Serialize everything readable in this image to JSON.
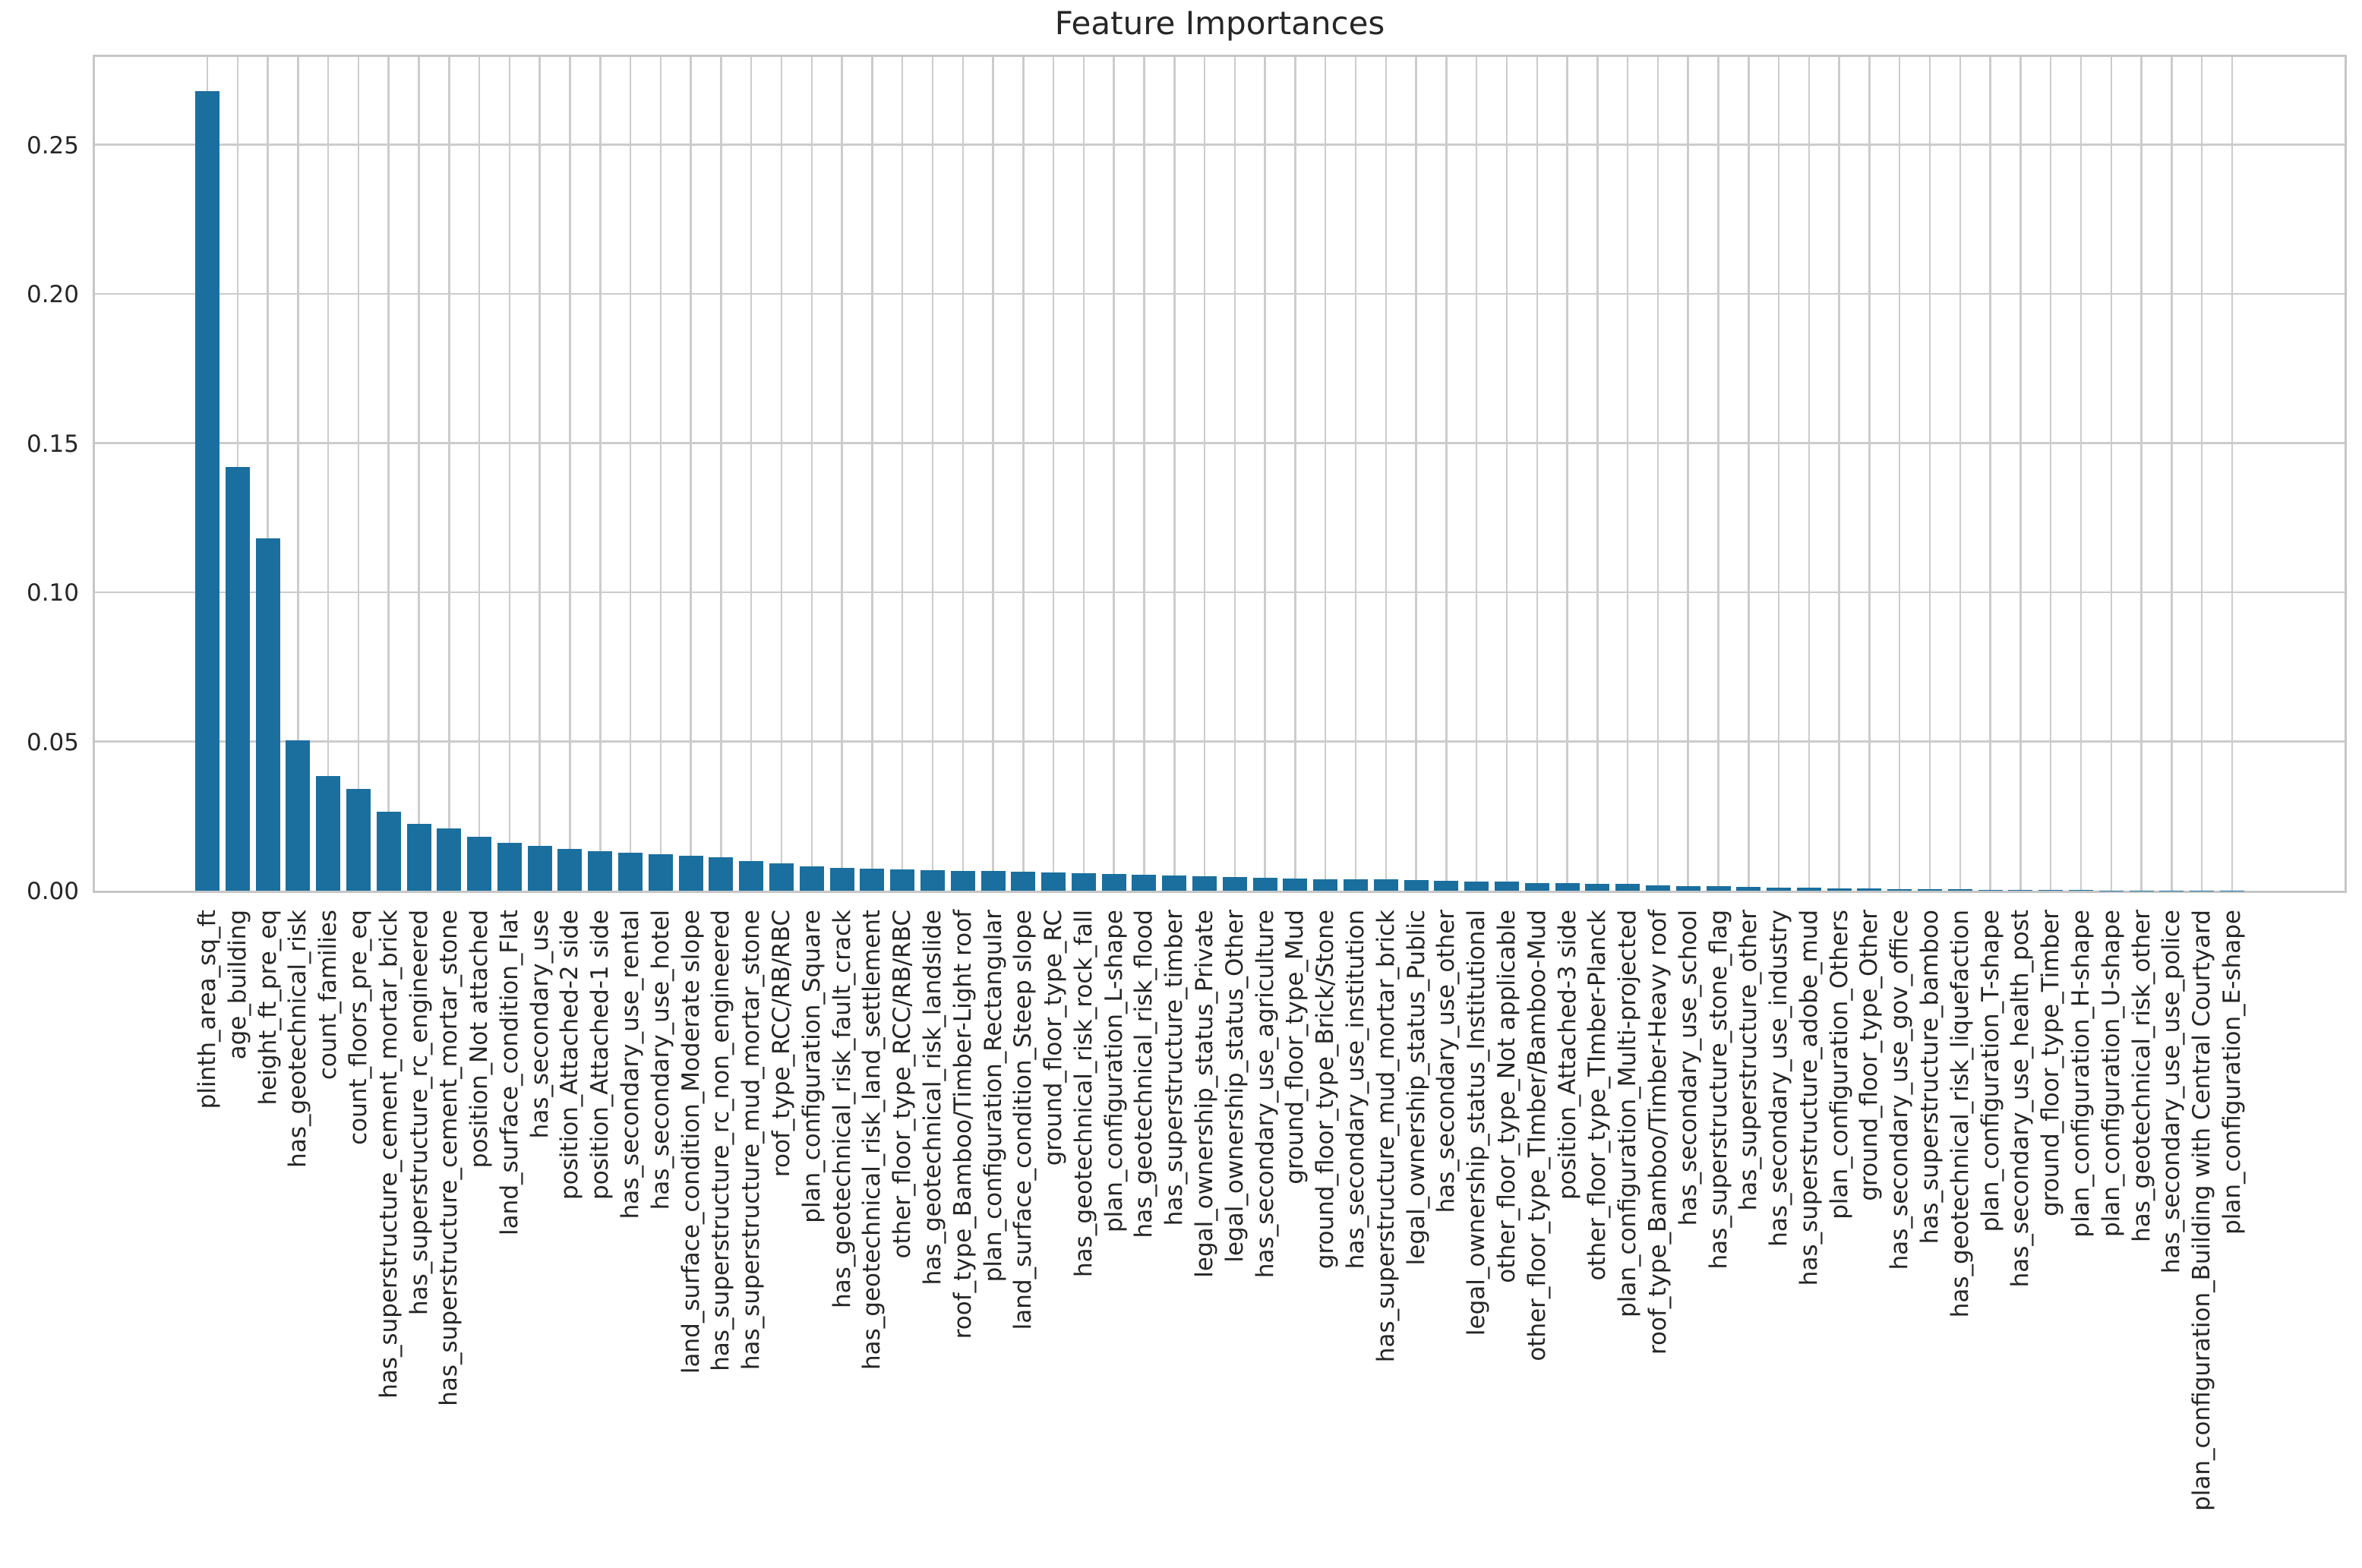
{
  "title": "Feature Importances",
  "colors": {
    "bar": "#1A6F9E",
    "gridline": "#CCCCCC",
    "frame": "#C6C6C6",
    "text": "#262626",
    "background": "#FFFFFF"
  },
  "y_axis": {
    "tick_labels": [
      "0.00",
      "0.05",
      "0.10",
      "0.15",
      "0.20",
      "0.25"
    ],
    "tick_values": [
      0.0,
      0.05,
      0.1,
      0.15,
      0.2,
      0.25
    ]
  },
  "chart_data": {
    "type": "bar",
    "title": "Feature Importances",
    "xlabel": "",
    "ylabel": "",
    "ylim": [
      0,
      0.281
    ],
    "grid": true,
    "legend": false,
    "bar_color": "#1A6F9E",
    "categories": [
      "plinth_area_sq_ft",
      "age_building",
      "height_ft_pre_eq",
      "has_geotechnical_risk",
      "count_families",
      "count_floors_pre_eq",
      "has_superstructure_cement_mortar_brick",
      "has_superstructure_rc_engineered",
      "has_superstructure_cement_mortar_stone",
      "position_Not attached",
      "land_surface_condition_Flat",
      "has_secondary_use",
      "position_Attached-2 side",
      "position_Attached-1 side",
      "has_secondary_use_rental",
      "has_secondary_use_hotel",
      "land_surface_condition_Moderate slope",
      "has_superstructure_rc_non_engineered",
      "has_superstructure_mud_mortar_stone",
      "roof_type_RCC/RB/RBC",
      "plan_configuration_Square",
      "has_geotechnical_risk_fault_crack",
      "has_geotechnical_risk_land_settlement",
      "other_floor_type_RCC/RB/RBC",
      "has_geotechnical_risk_landslide",
      "roof_type_Bamboo/Timber-Light roof",
      "plan_configuration_Rectangular",
      "land_surface_condition_Steep slope",
      "ground_floor_type_RC",
      "has_geotechnical_risk_rock_fall",
      "plan_configuration_L-shape",
      "has_geotechnical_risk_flood",
      "has_superstructure_timber",
      "legal_ownership_status_Private",
      "legal_ownership_status_Other",
      "has_secondary_use_agriculture",
      "ground_floor_type_Mud",
      "ground_floor_type_Brick/Stone",
      "has_secondary_use_institution",
      "has_superstructure_mud_mortar_brick",
      "legal_ownership_status_Public",
      "has_secondary_use_other",
      "legal_ownership_status_Institutional",
      "other_floor_type_Not applicable",
      "other_floor_type_TImber/Bamboo-Mud",
      "position_Attached-3 side",
      "other_floor_type_TImber-Planck",
      "plan_configuration_Multi-projected",
      "roof_type_Bamboo/Timber-Heavy roof",
      "has_secondary_use_school",
      "has_superstructure_stone_flag",
      "has_superstructure_other",
      "has_secondary_use_industry",
      "has_superstructure_adobe_mud",
      "plan_configuration_Others",
      "ground_floor_type_Other",
      "has_secondary_use_gov_office",
      "has_superstructure_bamboo",
      "has_geotechnical_risk_liquefaction",
      "plan_configuration_T-shape",
      "has_secondary_use_health_post",
      "ground_floor_type_Timber",
      "plan_configuration_H-shape",
      "plan_configuration_U-shape",
      "has_geotechnical_risk_other",
      "has_secondary_use_use_police",
      "plan_configuration_Building with Central Courtyard",
      "plan_configuration_E-shape"
    ],
    "values": [
      0.268,
      0.142,
      0.118,
      0.0505,
      0.0385,
      0.034,
      0.0265,
      0.0225,
      0.0208,
      0.018,
      0.016,
      0.015,
      0.014,
      0.0132,
      0.0126,
      0.0121,
      0.0116,
      0.0112,
      0.0099,
      0.0091,
      0.0082,
      0.0077,
      0.0074,
      0.0072,
      0.0069,
      0.0067,
      0.0065,
      0.0063,
      0.0061,
      0.0059,
      0.0056,
      0.0053,
      0.0051,
      0.0049,
      0.0047,
      0.0044,
      0.0042,
      0.0039,
      0.0038,
      0.0037,
      0.0035,
      0.0033,
      0.0031,
      0.003,
      0.0026,
      0.0025,
      0.0024,
      0.0023,
      0.0017,
      0.0016,
      0.0015,
      0.0013,
      0.001,
      0.0009,
      0.0008,
      0.0007,
      0.0006,
      0.0005,
      0.0004,
      0.0003,
      0.00025,
      0.0002,
      0.00016,
      0.00012,
      9e-05,
      6e-05,
      4e-05,
      2e-05
    ]
  }
}
